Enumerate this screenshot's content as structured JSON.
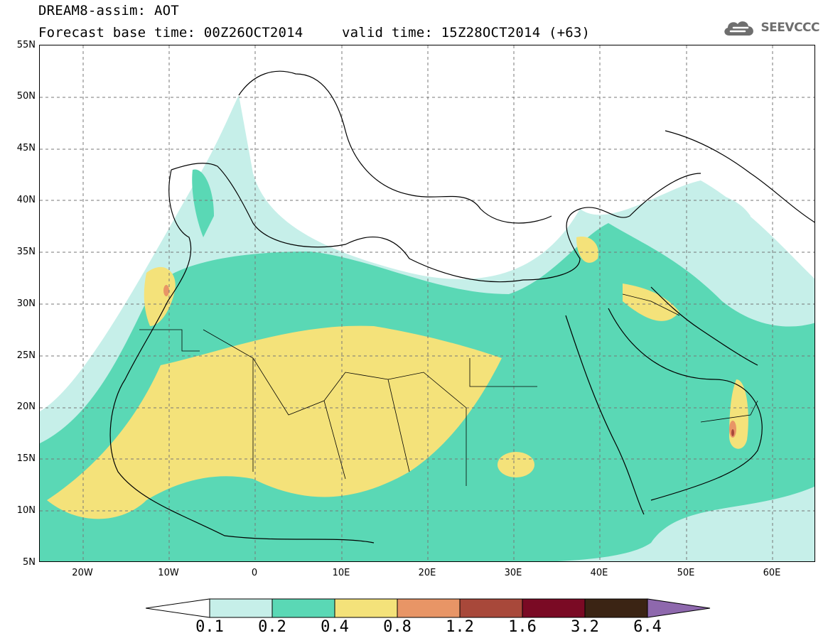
{
  "header": {
    "title": "DREAM8-assim: AOT",
    "base_time": "Forecast base time: 00Z26OCT2014",
    "valid_time": "valid time: 15Z28OCT2014 (+63)",
    "logo_text": "SEEVCCC",
    "logo_icon": "cloud-icon"
  },
  "axes": {
    "latitude_labels": [
      "55N",
      "50N",
      "45N",
      "40N",
      "35N",
      "30N",
      "25N",
      "20N",
      "15N",
      "10N",
      "5N"
    ],
    "longitude_labels": [
      "20W",
      "10W",
      "0",
      "10E",
      "20E",
      "30E",
      "40E",
      "50E",
      "60E"
    ]
  },
  "colorbar": {
    "labels": [
      "0.1",
      "0.2",
      "0.4",
      "0.8",
      "1.2",
      "1.6",
      "3.2",
      "6.4"
    ],
    "colors": [
      "#ffffff",
      "#c6efe9",
      "#5ad8b5",
      "#f4e27a",
      "#e89566",
      "#a8483a",
      "#7a0a24",
      "#3b2414",
      "#8e68ad"
    ]
  },
  "chart_data": {
    "type": "heatmap",
    "variable": "AOT",
    "lon_range": [
      -25,
      65
    ],
    "lat_range": [
      5,
      55
    ],
    "levels": [
      0.1,
      0.2,
      0.4,
      0.8,
      1.2,
      1.6,
      3.2,
      6.4
    ],
    "grid": true
  }
}
